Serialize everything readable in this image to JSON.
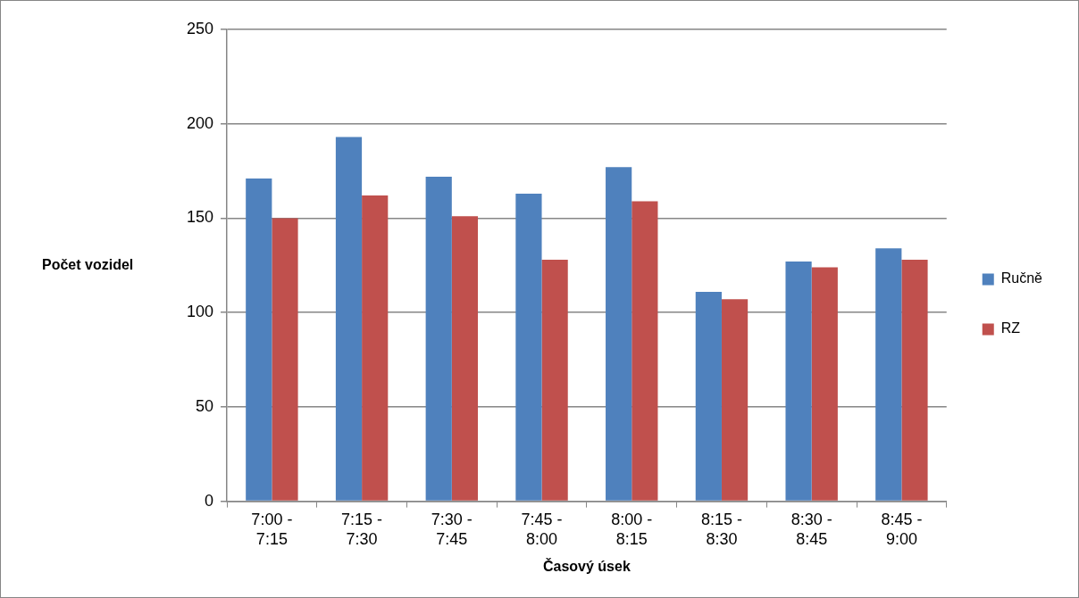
{
  "chart_data": {
    "type": "bar",
    "xlabel": "Časový úsek",
    "ylabel": "Počet vozidel",
    "categories": [
      "7:00 - 7:15",
      "7:15 - 7:30",
      "7:30 - 7:45",
      "7:45 - 8:00",
      "8:00 - 8:15",
      "8:15 - 8:30",
      "8:30 - 8:45",
      "8:45 - 9:00"
    ],
    "series": [
      {
        "name": "Ručně",
        "color": "#4f81bd",
        "values": [
          171,
          193,
          172,
          163,
          177,
          111,
          127,
          134
        ]
      },
      {
        "name": "RZ",
        "color": "#c0504d",
        "values": [
          150,
          162,
          151,
          128,
          159,
          107,
          124,
          128
        ]
      }
    ],
    "ylim": [
      0,
      250
    ],
    "yticks": [
      0,
      50,
      100,
      150,
      200,
      250
    ],
    "grid": "y",
    "legend": "right"
  }
}
